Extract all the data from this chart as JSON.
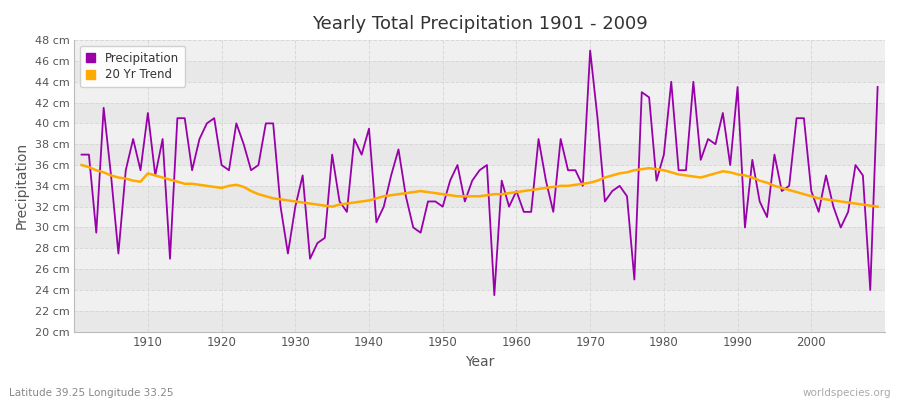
{
  "title": "Yearly Total Precipitation 1901 - 2009",
  "xlabel": "Year",
  "ylabel": "Precipitation",
  "subtitle": "Latitude 39.25 Longitude 33.25",
  "watermark": "worldspecies.org",
  "years": [
    1901,
    1902,
    1903,
    1904,
    1905,
    1906,
    1907,
    1908,
    1909,
    1910,
    1911,
    1912,
    1913,
    1914,
    1915,
    1916,
    1917,
    1918,
    1919,
    1920,
    1921,
    1922,
    1923,
    1924,
    1925,
    1926,
    1927,
    1928,
    1929,
    1930,
    1931,
    1932,
    1933,
    1934,
    1935,
    1936,
    1937,
    1938,
    1939,
    1940,
    1941,
    1942,
    1943,
    1944,
    1945,
    1946,
    1947,
    1948,
    1949,
    1950,
    1951,
    1952,
    1953,
    1954,
    1955,
    1956,
    1957,
    1958,
    1959,
    1960,
    1961,
    1962,
    1963,
    1964,
    1965,
    1966,
    1967,
    1968,
    1969,
    1970,
    1971,
    1972,
    1973,
    1974,
    1975,
    1976,
    1977,
    1978,
    1979,
    1980,
    1981,
    1982,
    1983,
    1984,
    1985,
    1986,
    1987,
    1988,
    1989,
    1990,
    1991,
    1992,
    1993,
    1994,
    1995,
    1996,
    1997,
    1998,
    1999,
    2000,
    2001,
    2002,
    2003,
    2004,
    2005,
    2006,
    2007,
    2008,
    2009
  ],
  "precip": [
    37.0,
    37.0,
    29.5,
    41.5,
    35.0,
    27.5,
    35.5,
    38.5,
    35.5,
    41.0,
    35.0,
    38.5,
    27.0,
    40.5,
    40.5,
    35.5,
    38.5,
    40.0,
    40.5,
    36.0,
    35.5,
    40.0,
    38.0,
    35.5,
    36.0,
    40.0,
    40.0,
    32.0,
    27.5,
    32.0,
    35.0,
    27.0,
    28.5,
    29.0,
    37.0,
    32.5,
    31.5,
    38.5,
    37.0,
    39.5,
    30.5,
    32.0,
    35.0,
    37.5,
    33.0,
    30.0,
    29.5,
    32.5,
    32.5,
    32.0,
    34.5,
    36.0,
    32.5,
    34.5,
    35.5,
    36.0,
    23.5,
    34.5,
    32.0,
    33.5,
    31.5,
    31.5,
    38.5,
    34.5,
    31.5,
    38.5,
    35.5,
    35.5,
    34.0,
    47.0,
    40.5,
    32.5,
    33.5,
    34.0,
    33.0,
    25.0,
    43.0,
    42.5,
    34.5,
    37.0,
    44.0,
    35.5,
    35.5,
    44.0,
    36.5,
    38.5,
    38.0,
    41.0,
    36.0,
    43.5,
    30.0,
    36.5,
    32.5,
    31.0,
    37.0,
    33.5,
    34.0,
    40.5,
    40.5,
    33.5,
    31.5,
    35.0,
    32.0,
    30.0,
    31.5,
    36.0,
    35.0,
    24.0,
    43.5
  ],
  "trend_years": [
    1901,
    1902,
    1903,
    1904,
    1905,
    1906,
    1907,
    1908,
    1909,
    1910,
    1911,
    1912,
    1913,
    1914,
    1915,
    1916,
    1917,
    1918,
    1919,
    1920,
    1921,
    1922,
    1923,
    1924,
    1925,
    1926,
    1927,
    1928,
    1929,
    1930,
    1931,
    1932,
    1933,
    1934,
    1935,
    1936,
    1937,
    1938,
    1939,
    1940,
    1941,
    1942,
    1943,
    1944,
    1945,
    1946,
    1947,
    1948,
    1949,
    1950,
    1951,
    1952,
    1953,
    1954,
    1955,
    1956,
    1957,
    1958,
    1959,
    1960,
    1961,
    1962,
    1963,
    1964,
    1965,
    1966,
    1967,
    1968,
    1969,
    1970,
    1971,
    1972,
    1973,
    1974,
    1975,
    1976,
    1977,
    1978,
    1979,
    1980,
    1981,
    1982,
    1983,
    1984,
    1985,
    1986,
    1987,
    1988,
    1989,
    1990,
    1991,
    1992,
    1993,
    1994,
    1995,
    1996,
    1997,
    1998,
    1999,
    2000,
    2001,
    2002,
    2003,
    2004,
    2005,
    2006,
    2007,
    2008,
    2009
  ],
  "trend": [
    36.0,
    35.8,
    35.5,
    35.3,
    35.0,
    34.8,
    34.7,
    34.5,
    34.4,
    35.2,
    35.0,
    34.8,
    34.6,
    34.4,
    34.2,
    34.2,
    34.1,
    34.0,
    33.9,
    33.8,
    34.0,
    34.1,
    33.9,
    33.5,
    33.2,
    33.0,
    32.8,
    32.7,
    32.6,
    32.5,
    32.4,
    32.3,
    32.2,
    32.1,
    32.0,
    32.2,
    32.3,
    32.4,
    32.5,
    32.6,
    32.8,
    33.0,
    33.1,
    33.2,
    33.3,
    33.4,
    33.5,
    33.4,
    33.3,
    33.2,
    33.1,
    33.0,
    33.0,
    33.0,
    33.0,
    33.1,
    33.2,
    33.2,
    33.3,
    33.4,
    33.5,
    33.6,
    33.7,
    33.8,
    33.9,
    34.0,
    34.0,
    34.1,
    34.2,
    34.3,
    34.5,
    34.8,
    35.0,
    35.2,
    35.3,
    35.5,
    35.6,
    35.7,
    35.6,
    35.5,
    35.3,
    35.1,
    35.0,
    34.9,
    34.8,
    35.0,
    35.2,
    35.4,
    35.3,
    35.1,
    35.0,
    34.8,
    34.5,
    34.3,
    34.0,
    33.8,
    33.6,
    33.4,
    33.2,
    33.0,
    32.8,
    32.7,
    32.6,
    32.5,
    32.4,
    32.3,
    32.2,
    32.1,
    32.0
  ],
  "precip_color": "#9900aa",
  "trend_color": "#ffaa00",
  "bg_color": "#ffffff",
  "plot_bg_color": "#f0f0f0",
  "stripe_color": "#e8e8e8",
  "grid_color": "#d8d8d8",
  "ylim": [
    20,
    48
  ],
  "ytick_step": 2,
  "xlim_min": 1900,
  "xlim_max": 2010,
  "xtick_positions": [
    1910,
    1920,
    1930,
    1940,
    1950,
    1960,
    1970,
    1980,
    1990,
    2000
  ]
}
